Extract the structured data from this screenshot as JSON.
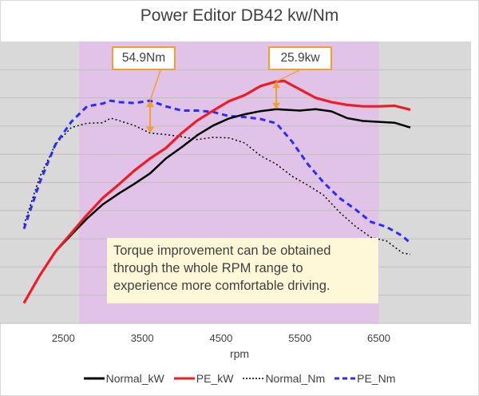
{
  "chart_data": {
    "type": "line",
    "title": "Power Editor DB42 kw/Nm",
    "xlabel": "rpm",
    "ylabel": "",
    "xlim": [
      1850,
      7050
    ],
    "ylim": [
      0,
      10
    ],
    "x_ticks": [
      2500,
      3500,
      4500,
      5500,
      6500
    ],
    "grid": true,
    "legend_position": "bottom",
    "highlight_range": [
      2700,
      6500
    ],
    "series": [
      {
        "name": "Normal_kW",
        "color": "#000000",
        "style": "solid",
        "x": [
          2000,
          2200,
          2400,
          2600,
          2800,
          3000,
          3200,
          3400,
          3600,
          3800,
          4000,
          4200,
          4400,
          4600,
          4800,
          5000,
          5200,
          5300,
          5500,
          5700,
          5900,
          6100,
          6300,
          6500,
          6700,
          6900
        ],
        "y": [
          0.72,
          1.7,
          2.55,
          3.14,
          3.72,
          4.22,
          4.6,
          4.95,
          5.32,
          5.85,
          6.25,
          6.68,
          7.02,
          7.27,
          7.42,
          7.53,
          7.6,
          7.58,
          7.55,
          7.6,
          7.52,
          7.28,
          7.18,
          7.15,
          7.12,
          6.95
        ]
      },
      {
        "name": "PE_kW",
        "color": "#ee1c25",
        "style": "solid",
        "x": [
          2000,
          2200,
          2400,
          2600,
          2800,
          3000,
          3200,
          3400,
          3600,
          3800,
          4000,
          4200,
          4400,
          4600,
          4800,
          5000,
          5200,
          5300,
          5500,
          5700,
          5900,
          6100,
          6300,
          6500,
          6700,
          6900
        ],
        "y": [
          0.72,
          1.7,
          2.55,
          3.2,
          3.85,
          4.45,
          4.92,
          5.42,
          5.85,
          6.22,
          6.75,
          7.2,
          7.55,
          7.88,
          8.1,
          8.42,
          8.58,
          8.6,
          8.3,
          8.0,
          7.85,
          7.75,
          7.7,
          7.7,
          7.72,
          7.58
        ]
      },
      {
        "name": "Normal_Nm",
        "color": "#000000",
        "style": "dotted",
        "x": [
          2000,
          2200,
          2400,
          2600,
          2800,
          3000,
          3100,
          3200,
          3400,
          3600,
          3800,
          4000,
          4200,
          4400,
          4600,
          4800,
          5000,
          5200,
          5400,
          5600,
          5800,
          6000,
          6200,
          6400,
          6600,
          6800,
          6900
        ],
        "y": [
          3.5,
          5.2,
          6.35,
          6.95,
          7.1,
          7.12,
          7.28,
          7.2,
          7.02,
          6.75,
          6.7,
          6.62,
          6.52,
          6.6,
          6.58,
          6.4,
          5.95,
          5.65,
          5.22,
          4.9,
          4.55,
          3.95,
          3.45,
          3.05,
          2.92,
          2.5,
          2.45
        ]
      },
      {
        "name": "PE_Nm",
        "color": "#2b2bff",
        "style": "dashed",
        "x": [
          2000,
          2200,
          2400,
          2600,
          2800,
          3000,
          3100,
          3200,
          3400,
          3600,
          3800,
          4000,
          4200,
          4400,
          4600,
          4800,
          5000,
          5200,
          5400,
          5600,
          5800,
          6000,
          6200,
          6400,
          6600,
          6800,
          6900
        ],
        "y": [
          3.35,
          5.0,
          6.35,
          7.15,
          7.7,
          7.8,
          7.9,
          7.85,
          7.82,
          7.9,
          7.7,
          7.55,
          7.55,
          7.5,
          7.35,
          7.32,
          7.25,
          7.1,
          6.45,
          5.65,
          5.0,
          4.45,
          4.05,
          3.6,
          3.42,
          3.1,
          2.85
        ]
      }
    ],
    "annotations": [
      {
        "text": "54.9Nm",
        "x": 3600,
        "y_from": 6.75,
        "y_to": 7.9
      },
      {
        "text": "25.9kw",
        "x": 5200,
        "y_from": 7.6,
        "y_to": 8.58
      }
    ],
    "note_lines": [
      "Torque improvement can be obtained",
      "through the whole RPM range to",
      "experience more comfortable driving."
    ]
  }
}
